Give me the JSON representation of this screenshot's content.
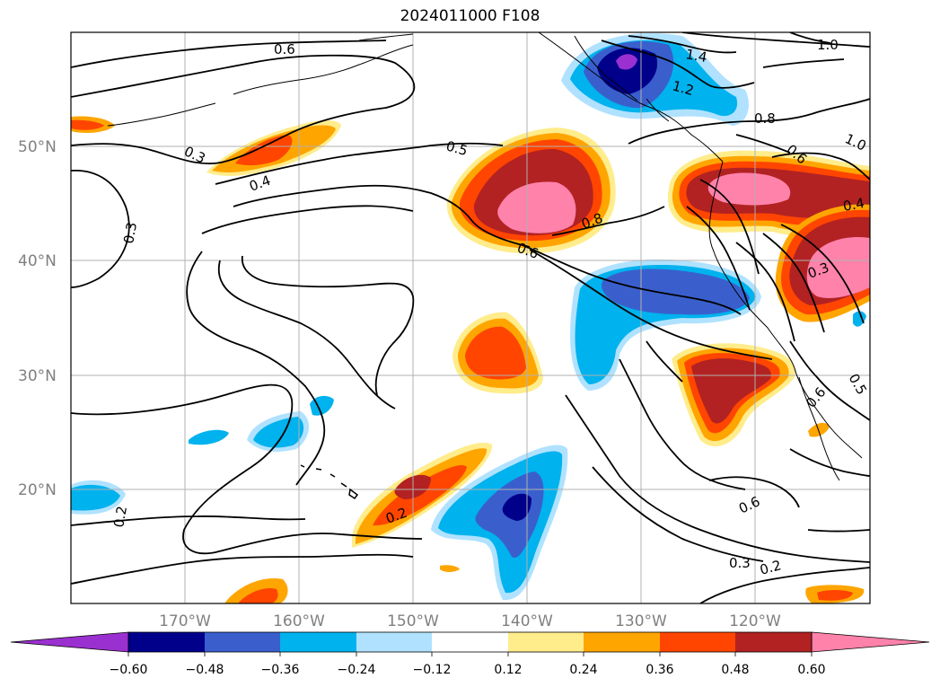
{
  "title": "2024011000 F108",
  "map": {
    "lat_labels": [
      "50°N",
      "40°N",
      "30°N",
      "20°N"
    ],
    "lon_labels": [
      "170°W",
      "160°W",
      "150°W",
      "140°W",
      "130°W",
      "120°W"
    ],
    "contour_labels": [
      "0.6",
      "1.4",
      "1.2",
      "1.0",
      "1.0",
      "0.8",
      "0.6",
      "0.3",
      "0.4",
      "0.5",
      "0.3",
      "0.8",
      "0.6",
      "0.4",
      "0.3",
      "0.2",
      "0.2",
      "0.6",
      "0.3",
      "0.2",
      "0.5",
      "0.6"
    ]
  },
  "colorbar": {
    "tick_labels": [
      "−0.60",
      "−0.48",
      "−0.36",
      "−0.24",
      "−0.12",
      "0.12",
      "0.24",
      "0.36",
      "0.48",
      "0.60"
    ],
    "colors": [
      "#9b30d0",
      "#00008b",
      "#3a5fcd",
      "#00b2ee",
      "#b0e2ff",
      "#ffffff",
      "#ffec8b",
      "#ffa500",
      "#ff4500",
      "#b22222",
      "#ff82ab",
      "#ff82ab"
    ]
  }
}
